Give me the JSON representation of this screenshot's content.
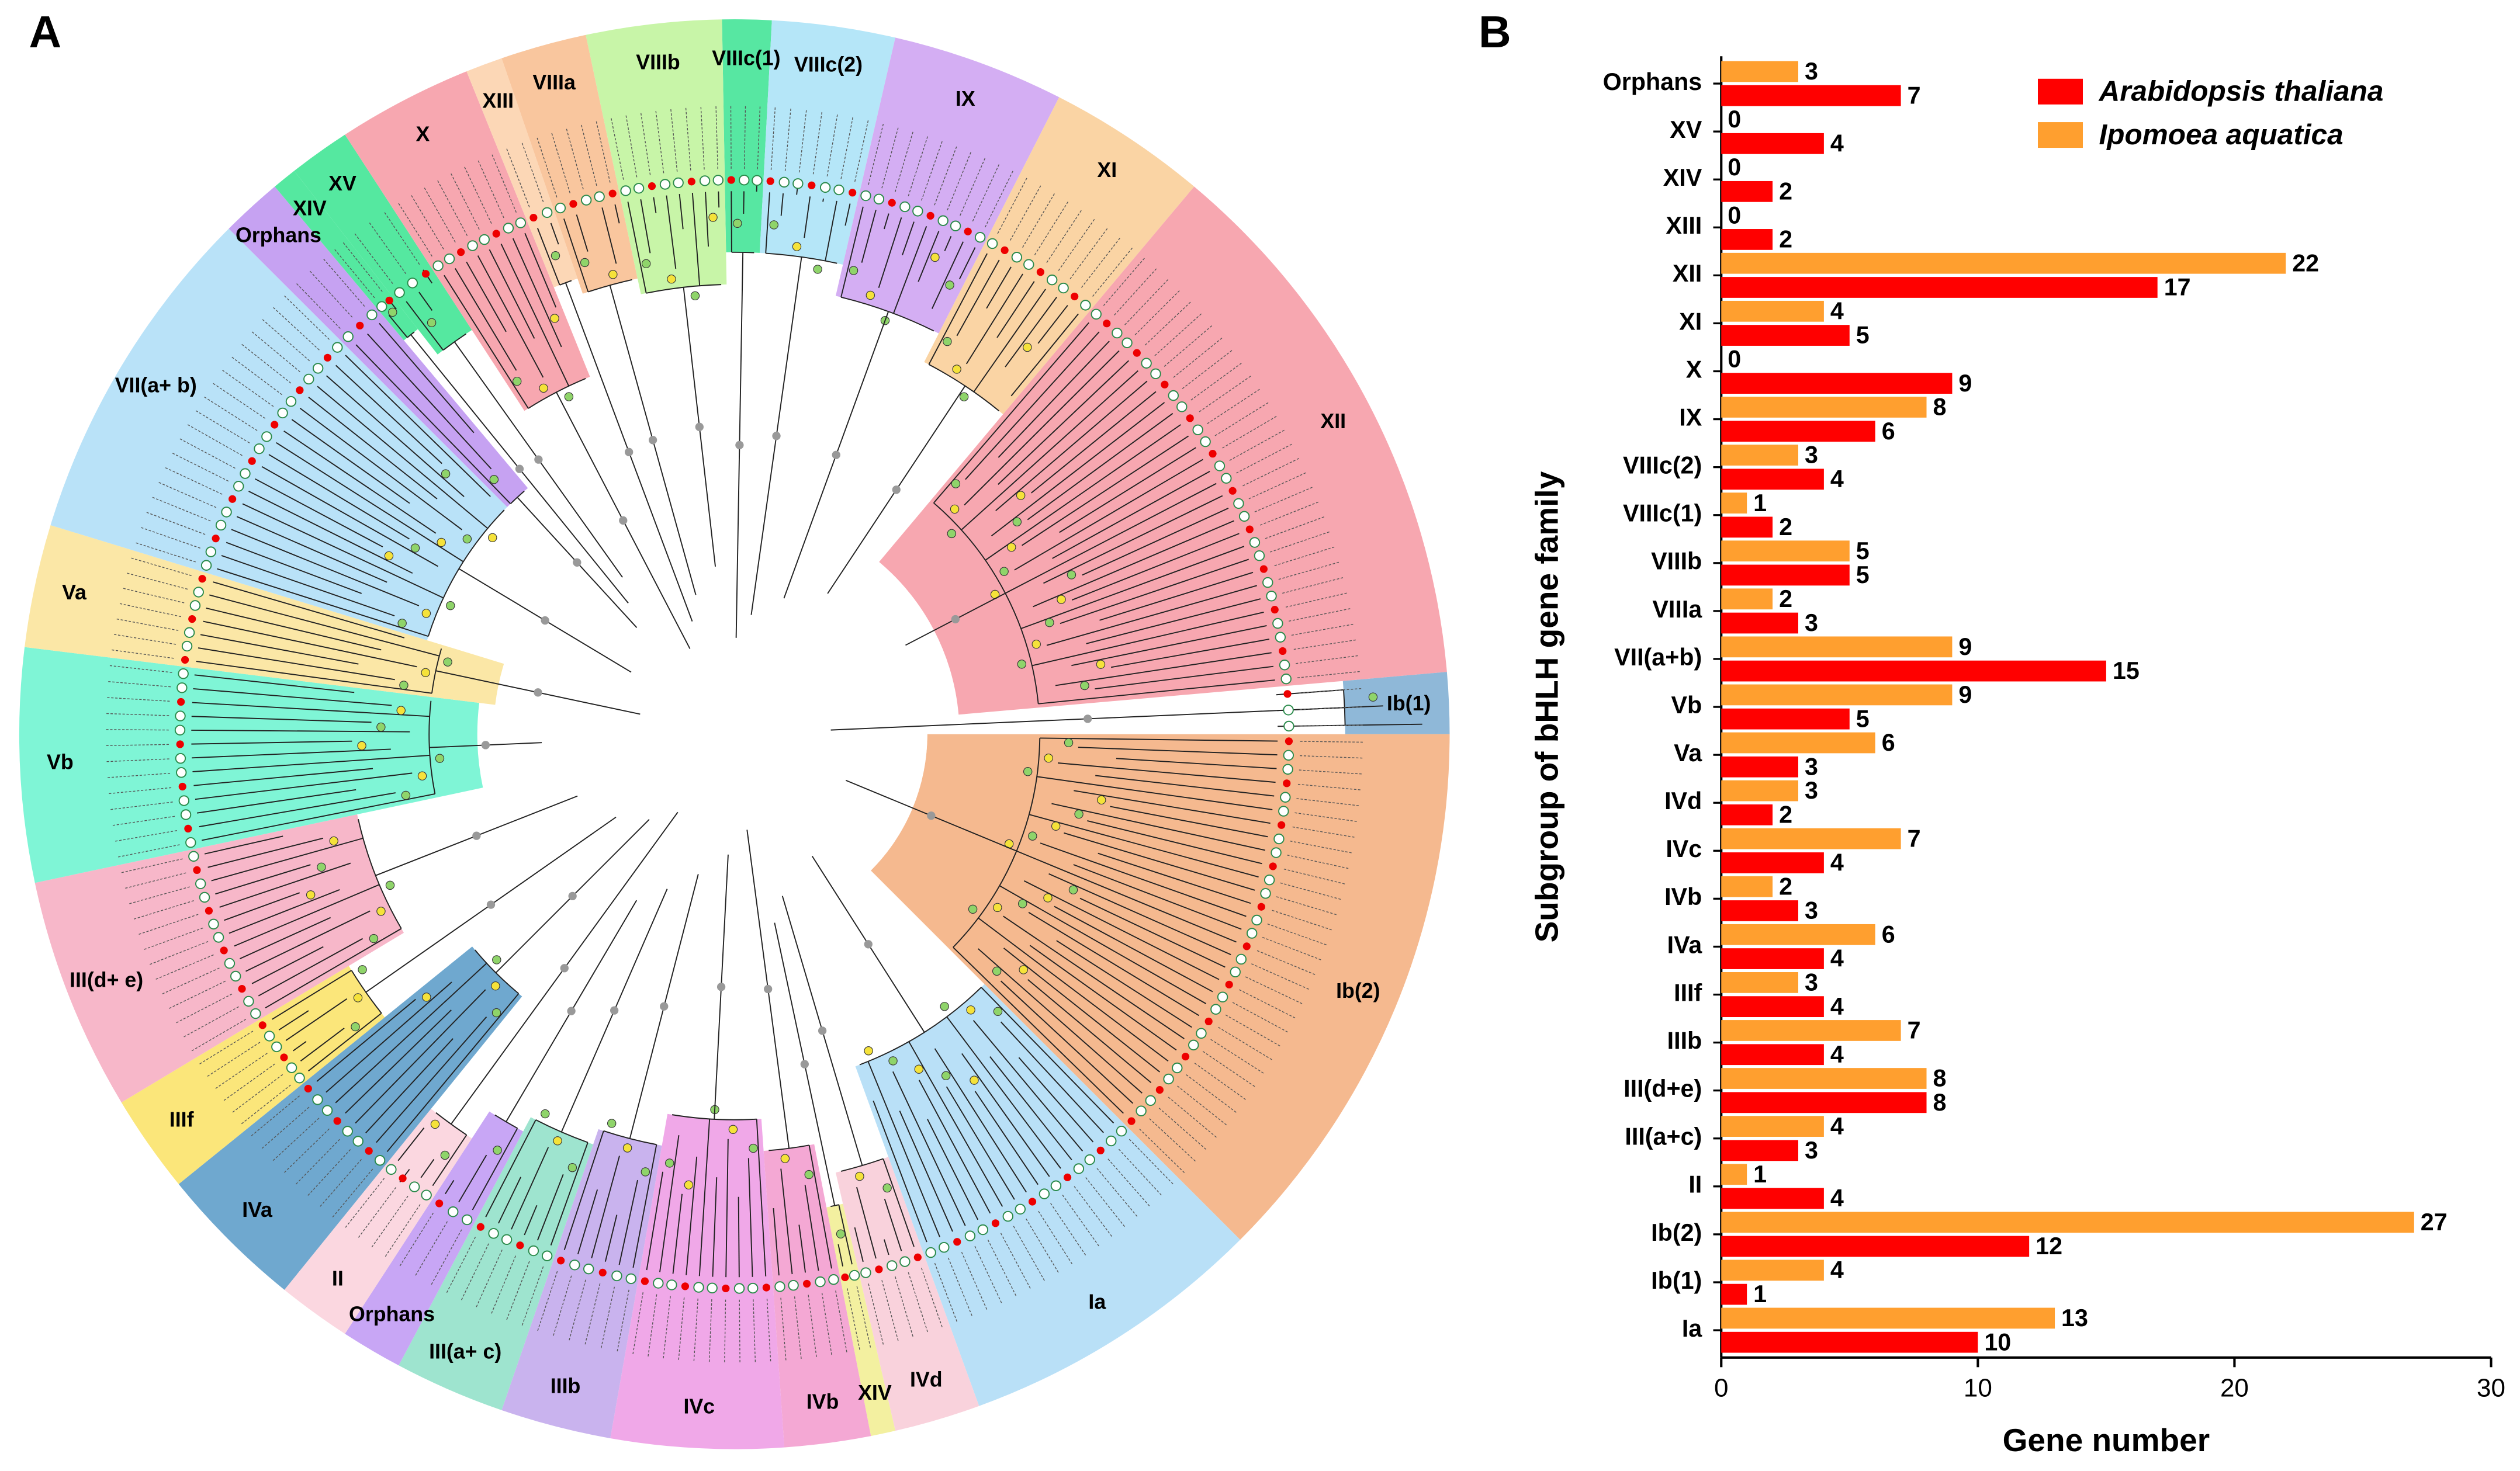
{
  "panel_a": {
    "letter": "A",
    "clades": [
      {
        "label": "VIIIc(1)",
        "color": "#57e7a2"
      },
      {
        "label": "VIIIc(2)",
        "color": "#b5e6f8"
      },
      {
        "label": "IX",
        "color": "#d4aef3"
      },
      {
        "label": "XI",
        "color": "#fad4a4"
      },
      {
        "label": "XII",
        "color": "#f7a7b0"
      },
      {
        "label": "Ib(1)",
        "color": "#8fb8d8"
      },
      {
        "label": "Ib(2)",
        "color": "#f5b98f"
      },
      {
        "label": "Ia",
        "color": "#b9e0f7"
      },
      {
        "label": "IVd",
        "color": "#f9d2dc"
      },
      {
        "label": "XIV",
        "color": "#f3f0a0"
      },
      {
        "label": "IVb",
        "color": "#f4a8d4"
      },
      {
        "label": "IVc",
        "color": "#f0a8e8"
      },
      {
        "label": "IIIb",
        "color": "#c9b3ee"
      },
      {
        "label": "III(a+ c)",
        "color": "#9ee4cf"
      },
      {
        "label": "Orphans",
        "color": "#c8a6f5"
      },
      {
        "label": "II",
        "color": "#fbd7e0"
      },
      {
        "label": "IVa",
        "color": "#6fa8cf"
      },
      {
        "label": "IIIf",
        "color": "#fbe67a"
      },
      {
        "label": "III(d+ e)",
        "color": "#f7b7c9"
      },
      {
        "label": "Vb",
        "color": "#7ff5d6"
      },
      {
        "label": "Va",
        "color": "#fbe7a6"
      },
      {
        "label": "VII(a+ b)",
        "color": "#b9e2f8"
      },
      {
        "label": "Orphans",
        "color": "#c6a2f2"
      },
      {
        "label": "XIV",
        "color": "#55e8a0"
      },
      {
        "label": "XV",
        "color": "#55e8a0"
      },
      {
        "label": "X",
        "color": "#f7a7b0"
      },
      {
        "label": "XIII",
        "color": "#fcd7b6"
      },
      {
        "label": "VIIIa",
        "color": "#f9c69e"
      },
      {
        "label": "VIIIb",
        "color": "#c8f5a8"
      }
    ]
  },
  "chart_data": {
    "type": "barh",
    "letter": "B",
    "xlabel": "Gene number",
    "ylabel": "Subgroup of bHLH gene family",
    "categories": [
      "Orphans",
      "XV",
      "XIV",
      "XIII",
      "XII",
      "XI",
      "X",
      "IX",
      "VIIIc(2)",
      "VIIIc(1)",
      "VIIIb",
      "VIIIa",
      "VII(a+b)",
      "Vb",
      "Va",
      "IVd",
      "IVc",
      "IVb",
      "IVa",
      "IIIf",
      "IIIb",
      "III(d+e)",
      "III(a+c)",
      "II",
      "Ib(2)",
      "Ib(1)",
      "Ia"
    ],
    "series": [
      {
        "name": "Arabidopsis thaliana",
        "color": "#ff0000",
        "values": [
          7,
          4,
          2,
          2,
          17,
          5,
          9,
          6,
          4,
          2,
          5,
          3,
          15,
          5,
          3,
          2,
          4,
          3,
          4,
          4,
          4,
          8,
          3,
          4,
          12,
          1,
          10
        ]
      },
      {
        "name": "Ipomoea aquatica",
        "color": "#ff9f2f",
        "values": [
          3,
          0,
          0,
          0,
          22,
          4,
          0,
          8,
          3,
          1,
          5,
          2,
          9,
          9,
          6,
          3,
          7,
          2,
          6,
          3,
          7,
          8,
          4,
          1,
          27,
          4,
          13
        ]
      }
    ],
    "xlim": [
      0,
      30
    ],
    "xticks": [
      0,
      10,
      20,
      30
    ],
    "legend": "upper right"
  }
}
